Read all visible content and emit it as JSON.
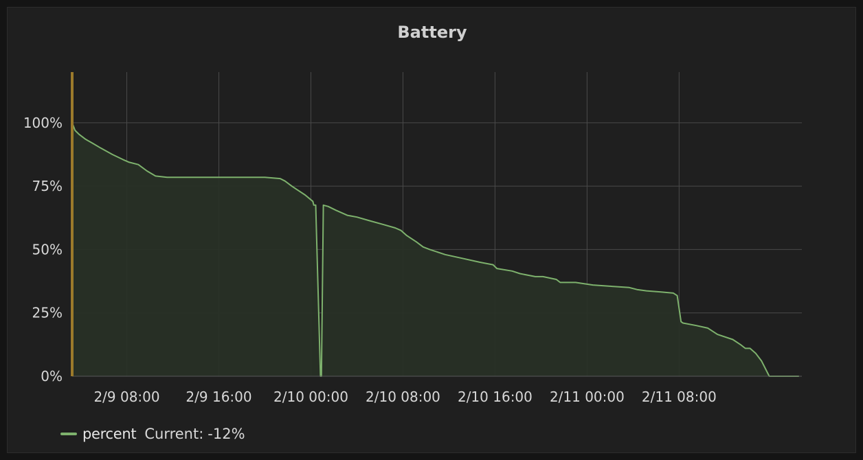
{
  "chart_data": {
    "type": "area",
    "title": "Battery",
    "xlabel": "",
    "ylabel": "",
    "ylim": [
      0,
      1.2
    ],
    "x_range": [
      "2/9 03:15",
      "2/11 18:40"
    ],
    "yticks": [
      {
        "value": 1.0,
        "label": "100%"
      },
      {
        "value": 0.75,
        "label": "75%"
      },
      {
        "value": 0.5,
        "label": "50%"
      },
      {
        "value": 0.25,
        "label": "25%"
      },
      {
        "value": 0.0,
        "label": "0%"
      }
    ],
    "xticks": [
      {
        "value": "2/9 08:00",
        "label": "2/9 08:00"
      },
      {
        "value": "2/9 16:00",
        "label": "2/9 16:00"
      },
      {
        "value": "2/10 00:00",
        "label": "2/10 00:00"
      },
      {
        "value": "2/10 08:00",
        "label": "2/10 08:00"
      },
      {
        "value": "2/10 16:00",
        "label": "2/10 16:00"
      },
      {
        "value": "2/11 00:00",
        "label": "2/11 00:00"
      },
      {
        "value": "2/11 08:00",
        "label": "2/11 08:00"
      }
    ],
    "grid": true,
    "legend_position": "bottom-left",
    "colors": {
      "line": "#7eb26d",
      "fill": "#283026",
      "grid": "#4a4a4a",
      "marker": "#9b7a2b"
    },
    "series": [
      {
        "name": "percent",
        "x": [
          "2/9 03:15",
          "2/9 03:30",
          "2/9 03:50",
          "2/9 04:25",
          "2/9 05:00",
          "2/9 05:45",
          "2/9 06:45",
          "2/9 07:40",
          "2/9 08:10",
          "2/9 09:00",
          "2/9 09:45",
          "2/9 10:30",
          "2/9 11:30",
          "2/9 14:00",
          "2/9 17:00",
          "2/9 20:00",
          "2/9 21:20",
          "2/9 21:45",
          "2/9 22:20",
          "2/9 22:50",
          "2/9 23:30",
          "2/10 00:10",
          "2/10 00:15",
          "2/10 00:25",
          "2/10 00:50",
          "2/10 00:55",
          "2/10 01:05",
          "2/10 01:30",
          "2/10 02:10",
          "2/10 03:10",
          "2/10 04:00",
          "2/10 05:00",
          "2/10 06:20",
          "2/10 07:20",
          "2/10 07:50",
          "2/10 08:20",
          "2/10 09:10",
          "2/10 09:45",
          "2/10 10:20",
          "2/10 11:40",
          "2/10 13:10",
          "2/10 14:40",
          "2/10 15:50",
          "2/10 16:10",
          "2/10 17:30",
          "2/10 18:10",
          "2/10 19:30",
          "2/10 20:10",
          "2/10 21:20",
          "2/10 21:40",
          "2/10 23:00",
          "2/11 00:30",
          "2/11 02:00",
          "2/11 03:40",
          "2/11 04:20",
          "2/11 05:10",
          "2/11 06:20",
          "2/11 07:30",
          "2/11 07:50",
          "2/11 08:10",
          "2/11 08:20",
          "2/11 09:30",
          "2/11 10:30",
          "2/11 11:20",
          "2/11 12:40",
          "2/11 13:20",
          "2/11 13:45",
          "2/11 14:10",
          "2/11 14:40",
          "2/11 15:10",
          "2/11 15:50",
          "2/11 16:30",
          "2/11 17:10",
          "2/11 17:40",
          "2/11 18:00",
          "2/11 18:25"
        ],
        "values": [
          1.0,
          0.97,
          0.955,
          0.935,
          0.92,
          0.9,
          0.875,
          0.855,
          0.845,
          0.835,
          0.81,
          0.79,
          0.785,
          0.785,
          0.785,
          0.785,
          0.78,
          0.77,
          0.75,
          0.735,
          0.715,
          0.69,
          0.675,
          0.675,
          0.0,
          0.0,
          0.675,
          0.67,
          0.655,
          0.635,
          0.628,
          0.615,
          0.598,
          0.585,
          0.575,
          0.555,
          0.53,
          0.51,
          0.5,
          0.48,
          0.465,
          0.45,
          0.44,
          0.425,
          0.415,
          0.405,
          0.393,
          0.393,
          0.382,
          0.37,
          0.37,
          0.36,
          0.355,
          0.35,
          0.342,
          0.337,
          0.333,
          0.328,
          0.318,
          0.215,
          0.21,
          0.2,
          0.19,
          0.165,
          0.145,
          0.125,
          0.11,
          0.11,
          0.09,
          0.06,
          0.0,
          -0.12,
          -0.12,
          -0.12,
          -0.12,
          -0.12
        ]
      }
    ]
  },
  "legend": {
    "series_name": "percent",
    "current_label": "Current:",
    "current_value": "-12%"
  }
}
